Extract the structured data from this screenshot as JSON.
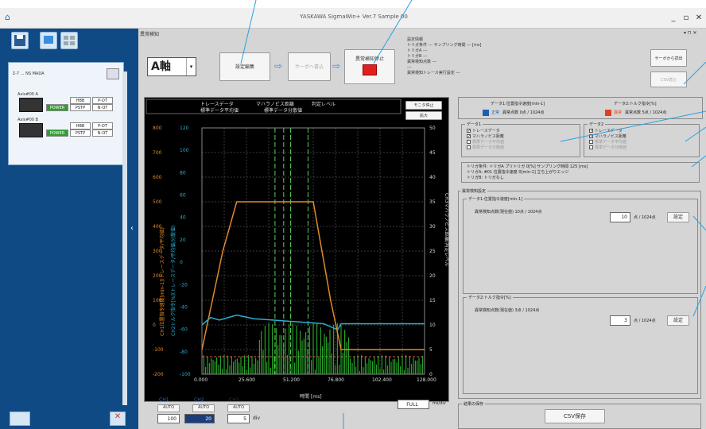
{
  "window": {
    "title": "YASKAWA SigmaWin+ Ver.7 Sample 00",
    "min": "_",
    "max": "▫",
    "close": "✕"
  },
  "sidebar": {
    "device_title": "Σ-7 ... NS MADA",
    "axis_a": {
      "label": "Axis#00 A",
      "power": "POWER",
      "hbb": "HBB",
      "potl": "P-OT",
      "pstp": "PSTP",
      "notl": "N-OT"
    },
    "axis_b": {
      "label": "Axis#00 B",
      "power": "POWER",
      "hbb": "HBB",
      "potl": "P-OT",
      "pstp": "PSTP",
      "notl": "N-OT"
    }
  },
  "main": {
    "title": "異常検知",
    "axis_select": "A軸",
    "btn_settings": "設定編集",
    "btn_read": "サーボへ書込",
    "btn_stop": "異常検知停止",
    "info": {
      "header": "設定情報",
      "line1": "トリガ条件 ---   サンプリング時間 --- [ms]",
      "line2": "トリガA ---",
      "line3": "トリガB ---",
      "line4": "異常検知点数 ---",
      "line5": "---",
      "line6": "異常検知トレース実行設定 ---"
    },
    "btn_read_servo": "サーボから読出",
    "btn_csv_read": "CSV読込"
  },
  "chart": {
    "btn_monitor_stop": "モニタ停止",
    "btn_zoom": "拡大",
    "legend1": "トレースデータ",
    "legend2": "マハラノビス距離",
    "legend3": "判定レベル",
    "legend4": "標準データ平均値",
    "legend5": "標準データ分散値",
    "xlabel": "時間 [ms]",
    "ylabel_left": "CH1位置指令速度[min-1](トレースデータ/平均値)",
    "ylabel_left2": "CH2トルク指令[%](トレースデータ/平均値/分散値)",
    "ylabel_right": "CH3マハラノビス距離/判定レベル"
  },
  "chart_data": {
    "type": "line",
    "x_ticks": [
      "0.000",
      "25.600",
      "51.200",
      "76.800",
      "102.400",
      "128.000"
    ],
    "y1_ticks": [
      "-200",
      "-100",
      "0",
      "100",
      "200",
      "300",
      "400",
      "500",
      "600",
      "700",
      "800"
    ],
    "y2_ticks": [
      "-100",
      "-80",
      "-60",
      "-40",
      "-20",
      "0",
      "20",
      "40",
      "60",
      "80",
      "100",
      "120"
    ],
    "y3_ticks": [
      "0",
      "5",
      "10",
      "15",
      "20",
      "25",
      "30",
      "35",
      "40",
      "45",
      "50"
    ],
    "xlim": [
      0,
      128
    ],
    "y1lim": [
      -200,
      800
    ],
    "y3lim": [
      0,
      50
    ],
    "series": [
      {
        "name": "位置指令速度",
        "color": "#e08a2a",
        "x": [
          0,
          12,
          20,
          64,
          74,
          80,
          128
        ],
        "y": [
          -100,
          300,
          500,
          500,
          100,
          -100,
          -100
        ]
      },
      {
        "name": "トルク指令",
        "color": "#2ab0d0",
        "x": [
          0,
          5,
          10,
          20,
          30,
          40,
          50,
          60,
          70,
          78,
          80,
          128
        ],
        "y": [
          0,
          30,
          20,
          40,
          25,
          20,
          15,
          10,
          5,
          -20,
          5,
          5
        ]
      }
    ],
    "vlines_x": [
      42,
      47,
      51,
      61
    ]
  },
  "bottom": {
    "ch1": "CH1",
    "ch2": "CH2",
    "ch3": "CH3",
    "auto": "AUTO",
    "ch1_val": "100",
    "ch2_val": "20",
    "ch3_val": "5",
    "div": "div",
    "time_scale": "FULL",
    "time_unit": "ms/div"
  },
  "right": {
    "data1_title": "データ1:位置指令速度[min-1]",
    "data2_title": "データ2:トルク指令[%]",
    "status1": "正常",
    "status1_text": "異常点数 0点 / 1024点",
    "status2": "異常",
    "status2_text": "異常点数 5点 / 1024点",
    "g1": "データ1",
    "g2": "データ2",
    "g1_items": [
      "トレースデータ",
      "マハラノビス距離",
      "標準データ平均値",
      "標準データ分散値"
    ],
    "g2_items": [
      "トレースデータ",
      "マハラノビス距離",
      "標準データ平均値",
      "標準データ分散値"
    ],
    "trig_line1": "トリガ条件: トリガA   プリトリガ 0[%]   サンプリング時間 125 [ms]",
    "trig_line2": "トリガA: #01 位置指令速度 0[min-1] 立ち上がりエッジ",
    "trig_line3": "トリガB: トリガなし",
    "detect_title": "異常検知設定",
    "sub1": "データ1:位置指令速度[min-1]",
    "sub1_row": "異常検知点数(現在値)   10点 / 1024点",
    "sub1_input": "10",
    "sub1_unit": "点 / 1024点",
    "sub1_btn": "設定",
    "sub2": "データ2:トルク指令[%]",
    "sub2_row": "異常検知点数(現在値)   3点 / 1024点",
    "sub2_input": "3",
    "sub2_unit": "点 / 1024点",
    "sub2_btn": "設定",
    "save_title": "結果の保存",
    "save_btn": "CSV保存"
  }
}
